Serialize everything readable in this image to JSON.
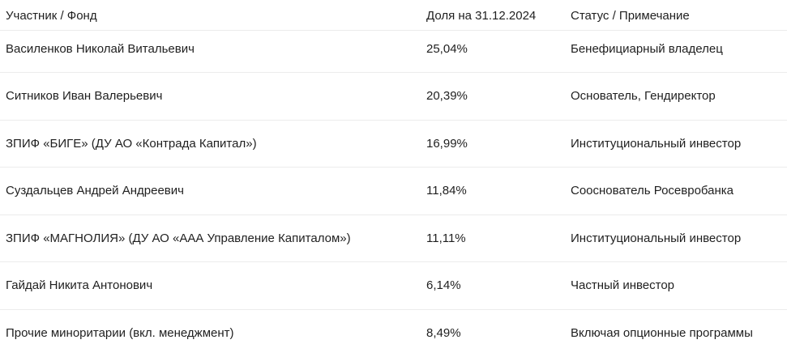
{
  "table": {
    "headers": [
      "Участник / Фонд",
      "Доля на 31.12.2024",
      "Статус / Примечание"
    ],
    "rows": [
      [
        "Василенков Николай Витальевич",
        "25,04%",
        "Бенефициарный владелец"
      ],
      [
        "Ситников Иван Валерьевич",
        "20,39%",
        "Основатель, Гендиректор"
      ],
      [
        "ЗПИФ «БИГЕ» (ДУ АО «Контрада Капитал»)",
        "16,99%",
        "Институциональный инвестор"
      ],
      [
        "Суздальцев Андрей Андреевич",
        "11,84%",
        "Сооснователь Росевробанка"
      ],
      [
        "ЗПИФ «МАГНОЛИЯ» (ДУ АО «ААА Управление Капиталом»)",
        "11,11%",
        "Институциональный инвестор"
      ],
      [
        "Гайдай Никита Антонович",
        "6,14%",
        "Частный инвестор"
      ],
      [
        "Прочие миноритарии (вкл. менеджмент)",
        "8,49%",
        "Включая опционные программы"
      ]
    ]
  }
}
